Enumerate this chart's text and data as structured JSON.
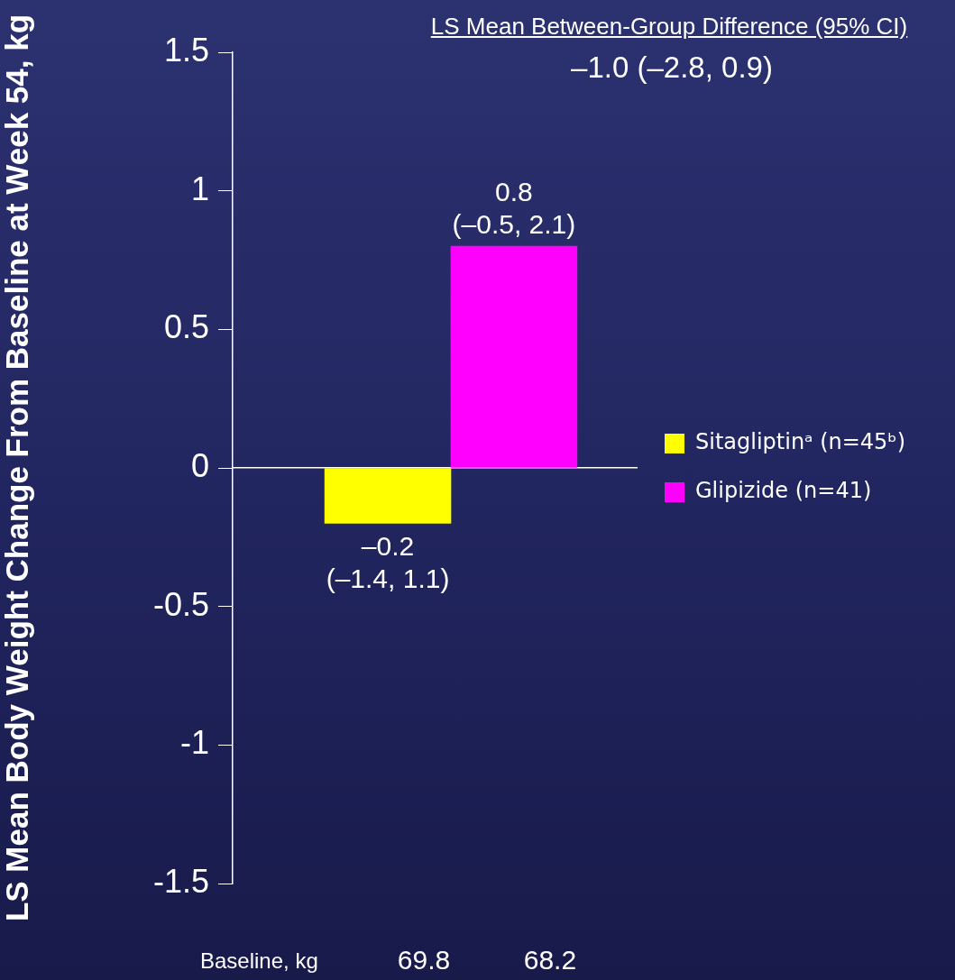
{
  "chart_data": {
    "type": "bar",
    "ylabel": "LS Mean Body Weight Change From Baseline at Week 54, kg",
    "categories": [
      null,
      null
    ],
    "series": [
      {
        "name": "Sitagliptinᵃ (n=45ᵇ)",
        "color": "#ffff00",
        "values": [
          -0.2,
          null
        ],
        "value_labels": [
          "–0.2 (–1.4, 1.1)",
          null
        ]
      },
      {
        "name": "Glipizide (n=41)",
        "color": "#ff00ff",
        "values": [
          null,
          0.8
        ],
        "value_labels": [
          null,
          "0.8 (–0.5, 2.1)"
        ]
      }
    ],
    "ylim": [
      -1.5,
      1.5
    ],
    "yticks": [
      -1.5,
      -1,
      -0.5,
      0,
      0.5,
      1,
      1.5
    ],
    "legend": "right",
    "tick_labels": "y",
    "annotations": [
      "LS Mean Between-Group Difference (95% CI)",
      "–1.0 (–2.8, 0.9)",
      "Baseline, kg",
      "69.8",
      "68.2"
    ]
  }
}
